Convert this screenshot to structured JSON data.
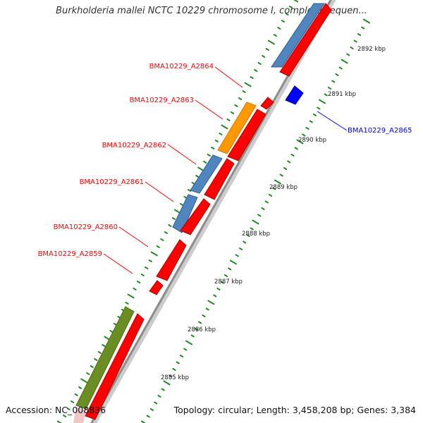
{
  "title": "Burkholderia mallei NCTC 10229 chromosome I, complete sequen...",
  "accession_text": "Accession: NC_008836",
  "summary_text": "Topology: circular; Length: 3,458,208 bp; Genes: 3,384",
  "colors": {
    "gene_red": "#ff0000",
    "gene_blue_label": "#0000ff",
    "gene_steelblue": "#4f86bf",
    "gene_orange": "#ff9900",
    "gene_olive": "#6b8e23",
    "backbone": "#999999",
    "tick_green": "#228b22"
  },
  "ticks": [
    "2885 kbp",
    "2886 kbp",
    "2887 kbp",
    "2888 kbp",
    "2889 kbp",
    "2890 kbp",
    "2891 kbp",
    "2892 kbp"
  ],
  "gene_labels": [
    {
      "name": "BMA10229_A2864",
      "color": "#ff0000"
    },
    {
      "name": "BMA10229_A2863",
      "color": "#ff0000"
    },
    {
      "name": "BMA10229_A2862",
      "color": "#ff0000"
    },
    {
      "name": "BMA10229_A2861",
      "color": "#ff0000"
    },
    {
      "name": "BMA10229_A2860",
      "color": "#ff0000"
    },
    {
      "name": "BMA10229_A2859",
      "color": "#ff0000"
    },
    {
      "name": "BMA10229_A2865",
      "color": "#0000ff"
    }
  ]
}
